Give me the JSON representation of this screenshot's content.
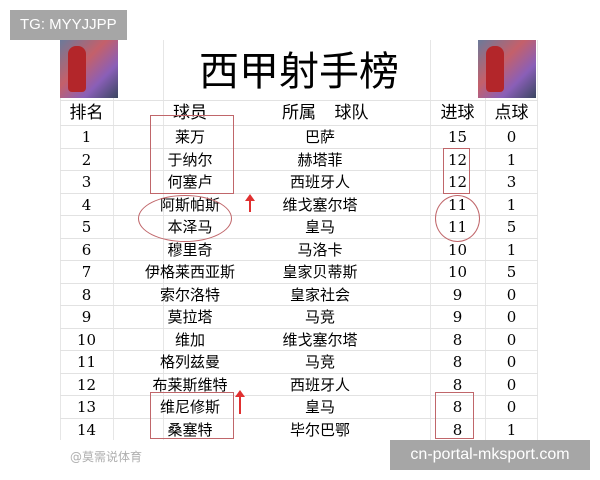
{
  "overlay": {
    "tag": "TG: MYYJJPP",
    "footer": "cn-portal-mksport.com",
    "watermark": "@莫需说体育"
  },
  "title": "西甲射手榜",
  "headers": {
    "rank": "排名",
    "player": "球员",
    "team_a": "所属",
    "team_b": "球队",
    "goals": "进球",
    "penalties": "点球"
  },
  "rows": [
    {
      "rank": "1",
      "player": "莱万",
      "team": "巴萨",
      "goals": "15",
      "penalties": "0"
    },
    {
      "rank": "2",
      "player": "于纳尔",
      "team": "赫塔菲",
      "goals": "12",
      "penalties": "1"
    },
    {
      "rank": "3",
      "player": "何塞卢",
      "team": "西班牙人",
      "goals": "12",
      "penalties": "3"
    },
    {
      "rank": "4",
      "player": "阿斯帕斯",
      "team": "维戈塞尔塔",
      "goals": "11",
      "penalties": "1"
    },
    {
      "rank": "5",
      "player": "本泽马",
      "team": "皇马",
      "goals": "11",
      "penalties": "5"
    },
    {
      "rank": "6",
      "player": "穆里奇",
      "team": "马洛卡",
      "goals": "10",
      "penalties": "1"
    },
    {
      "rank": "7",
      "player": "伊格莱西亚斯",
      "team": "皇家贝蒂斯",
      "goals": "10",
      "penalties": "5"
    },
    {
      "rank": "8",
      "player": "索尔洛特",
      "team": "皇家社会",
      "goals": "9",
      "penalties": "0"
    },
    {
      "rank": "9",
      "player": "莫拉塔",
      "team": "马竞",
      "goals": "9",
      "penalties": "0"
    },
    {
      "rank": "10",
      "player": "维加",
      "team": "维戈塞尔塔",
      "goals": "8",
      "penalties": "0"
    },
    {
      "rank": "11",
      "player": "格列兹曼",
      "team": "马竞",
      "goals": "8",
      "penalties": "0"
    },
    {
      "rank": "12",
      "player": "布莱斯维特",
      "team": "西班牙人",
      "goals": "8",
      "penalties": "0"
    },
    {
      "rank": "13",
      "player": "维尼修斯",
      "team": "皇马",
      "goals": "8",
      "penalties": "0"
    },
    {
      "rank": "14",
      "player": "桑塞特",
      "team": "毕尔巴鄂",
      "goals": "8",
      "penalties": "1"
    }
  ],
  "annotation_color": "#c0666a"
}
